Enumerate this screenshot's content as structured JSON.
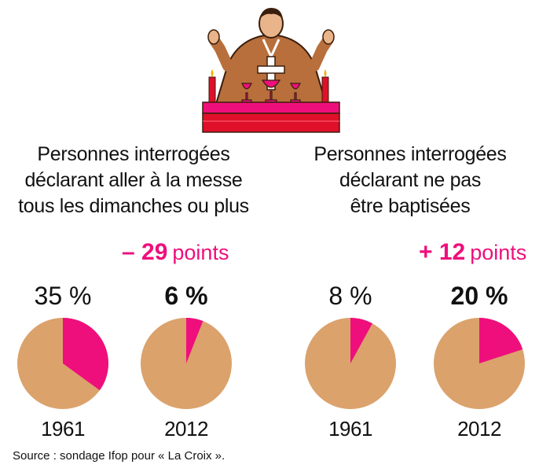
{
  "colors": {
    "accent": "#ee0f7c",
    "pie_base": "#dba26c",
    "text": "#111111"
  },
  "icon": "priest-at-altar-illustration",
  "chart_data": [
    {
      "type": "pie",
      "title": "Personnes interrogées\ndéclarant aller à la messe\ntous les dimanches ou plus",
      "change": {
        "value": "– 29",
        "unit": "points"
      },
      "pies": [
        {
          "year": "1961",
          "label": "35 %",
          "value": 35
        },
        {
          "year": "2012",
          "label": "6 %",
          "value": 6
        }
      ]
    },
    {
      "type": "pie",
      "title": "Personnes interrogées\ndéclarant ne pas\nêtre baptisées",
      "change": {
        "value": "+ 12",
        "unit": "points"
      },
      "pies": [
        {
          "year": "1961",
          "label": "8 %",
          "value": 8
        },
        {
          "year": "2012",
          "label": "20 %",
          "value": 20
        }
      ]
    }
  ],
  "source": "Source : sondage Ifop pour « La Croix »."
}
